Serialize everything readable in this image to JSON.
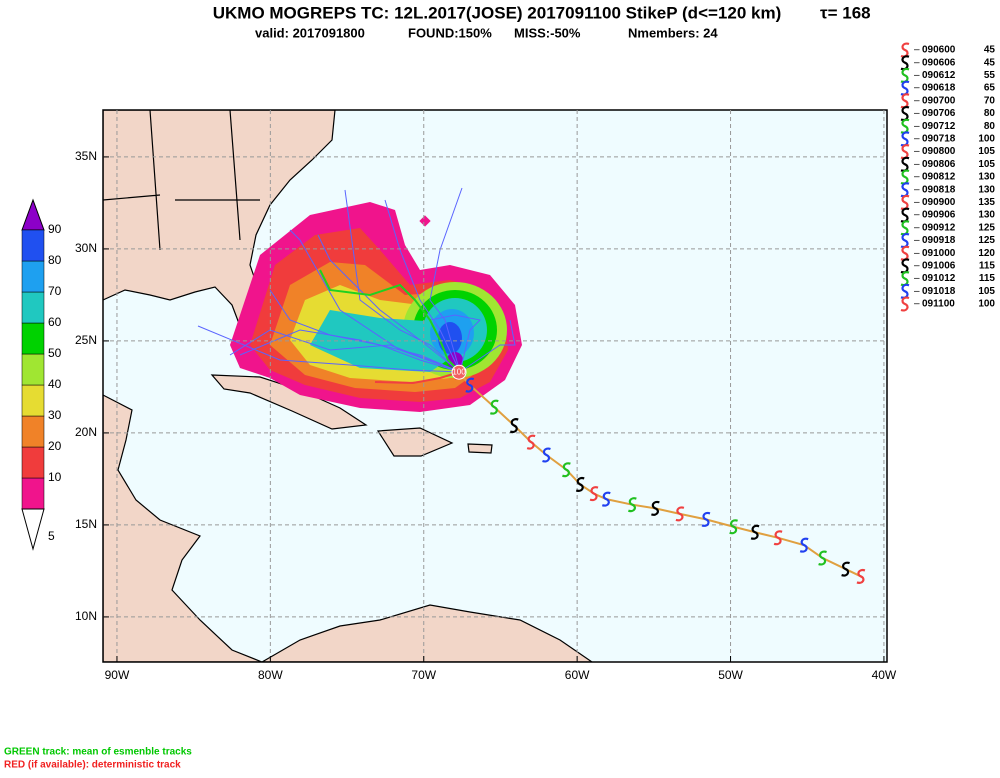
{
  "chart_data": {
    "type": "track-map",
    "title": "UKMO MOGREPS TC: 12L.2017(JOSE) 2017091100 StikeP (d<=120 km)",
    "tau": "τ= 168",
    "subtitle": {
      "valid": "valid: 2017091800",
      "found": "FOUND:150%",
      "miss": "MISS:-50%",
      "nmembers": "Nmembers: 24"
    },
    "xlim": [
      -90.91,
      -39.8
    ],
    "ylim": [
      7.55,
      37.55
    ],
    "xticks": [
      {
        "value": -90,
        "label": "90W"
      },
      {
        "value": -80,
        "label": "80W"
      },
      {
        "value": -70,
        "label": "70W"
      },
      {
        "value": -60,
        "label": "60W"
      },
      {
        "value": -50,
        "label": "50W"
      },
      {
        "value": -40,
        "label": "40W"
      }
    ],
    "yticks": [
      {
        "value": 10,
        "label": "10N"
      },
      {
        "value": 15,
        "label": "15N"
      },
      {
        "value": 20,
        "label": "20N"
      },
      {
        "value": 25,
        "label": "25N"
      },
      {
        "value": 30,
        "label": "30N"
      },
      {
        "value": 35,
        "label": "35N"
      }
    ],
    "grid": true,
    "colorbar": {
      "levels": [
        5,
        10,
        20,
        30,
        40,
        50,
        60,
        70,
        80,
        90
      ],
      "colors": [
        "#ffffff",
        "#f0148c",
        "#f03c3c",
        "#f08228",
        "#e6dc32",
        "#a0e632",
        "#00d200",
        "#20c8c0",
        "#1ea0f0",
        "#2050f0",
        "#8c00c8"
      ]
    },
    "track": {
      "times": [
        "090600",
        "090606",
        "090612",
        "090618",
        "090700",
        "090706",
        "090712",
        "090718",
        "090800",
        "090806",
        "090812",
        "090818",
        "090900",
        "090906",
        "090912",
        "090918",
        "091000",
        "091006",
        "091012",
        "091018",
        "091100"
      ],
      "intensity": [
        45,
        45,
        55,
        65,
        70,
        80,
        80,
        100,
        105,
        105,
        130,
        130,
        135,
        130,
        125,
        125,
        120,
        115,
        115,
        105,
        100
      ],
      "lon": [
        -41.5,
        -42.5,
        -44.0,
        -45.2,
        -46.9,
        -48.4,
        -49.8,
        -51.6,
        -53.3,
        -54.9,
        -56.4,
        -58.1,
        -58.9,
        -59.8,
        -60.7,
        -62.0,
        -63.0,
        -64.1,
        -65.4,
        -67.0,
        -67.7
      ],
      "lat": [
        12.2,
        12.6,
        13.2,
        13.9,
        14.3,
        14.6,
        14.9,
        15.3,
        15.6,
        15.9,
        16.1,
        16.4,
        16.7,
        17.2,
        18.0,
        18.8,
        19.5,
        20.4,
        21.4,
        22.6,
        23.3
      ],
      "colors": [
        "#f04040",
        "#000000",
        "#20c020",
        "#2040f0",
        "#f04040",
        "#000000",
        "#20c020",
        "#2040f0",
        "#f04040",
        "#000000",
        "#20c020",
        "#2040f0",
        "#f04040",
        "#000000",
        "#20c020",
        "#2040f0",
        "#f04040",
        "#000000",
        "#20c020",
        "#2040f0",
        "#f04040"
      ],
      "line_color": "#e0a040"
    },
    "marker_label": "100",
    "notes": [
      {
        "text": "GREEN track: mean of esmenble tracks",
        "color": "#00c800"
      },
      {
        "text": "RED (if available): deterministic track",
        "color": "#f02020"
      }
    ]
  }
}
